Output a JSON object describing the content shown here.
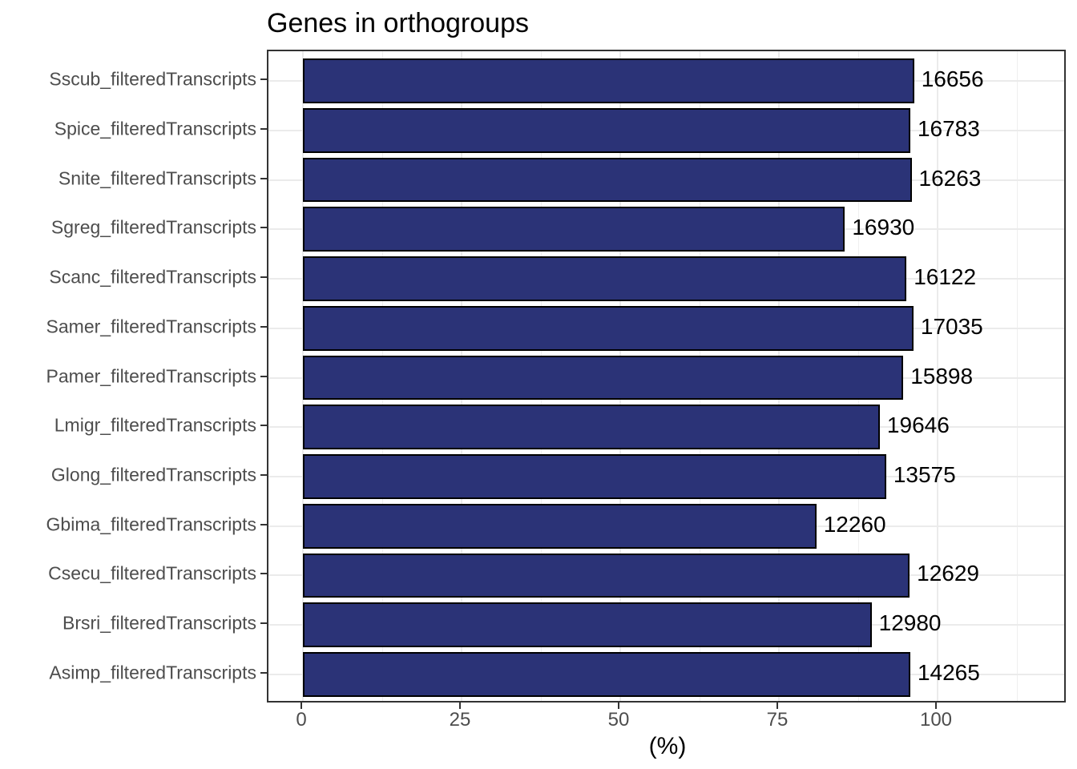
{
  "chart_data": {
    "type": "bar",
    "orientation": "horizontal",
    "title": "Genes in orthogroups",
    "xlabel": "(%)",
    "ylabel": "",
    "categories": [
      "Sscub_filteredTranscripts",
      "Spice_filteredTranscripts",
      "Snite_filteredTranscripts",
      "Sgreg_filteredTranscripts",
      "Scanc_filteredTranscripts",
      "Samer_filteredTranscripts",
      "Pamer_filteredTranscripts",
      "Lmigr_filteredTranscripts",
      "Glong_filteredTranscripts",
      "Gbima_filteredTranscripts",
      "Csecu_filteredTranscripts",
      "Brsri_filteredTranscripts",
      "Asimp_filteredTranscripts"
    ],
    "series": [
      {
        "name": "percent_of_genes_in_orthogroups",
        "values": [
          96.3,
          95.7,
          95.9,
          85.4,
          95.1,
          96.2,
          94.6,
          90.9,
          91.9,
          80.9,
          95.6,
          89.6,
          95.7
        ]
      },
      {
        "name": "gene_count_labels",
        "values": [
          "16656",
          "16783",
          "16263",
          "16930",
          "16122",
          "17035",
          "15898",
          "19646",
          "13575",
          "12260",
          "12629",
          "12980",
          "14265"
        ]
      }
    ],
    "x_ticks": [
      "0",
      "25",
      "50",
      "75",
      "100"
    ],
    "x_tick_values": [
      0,
      25,
      50,
      75,
      100
    ],
    "x_minor_tick_values": [
      12.5,
      37.5,
      62.5,
      87.5,
      112.5
    ],
    "xlim": [
      -5.4,
      120.6
    ],
    "grid": true,
    "legend": false,
    "colors": {
      "bar_fill": "#2B3377",
      "bar_stroke": "#000000",
      "grid_major": "#EBEBEB",
      "grid_minor": "#EFEFEF",
      "panel_border": "#333333",
      "axis_text": "#4D4D4D",
      "title_text": "#000000",
      "value_label_text": "#000000"
    }
  }
}
